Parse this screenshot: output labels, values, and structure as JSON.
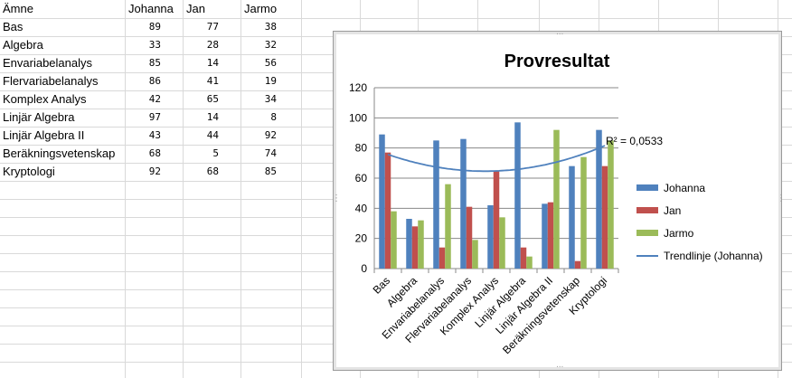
{
  "sheet": {
    "header": [
      "Ämne",
      "Johanna",
      "Jan",
      "Jarmo"
    ],
    "rows": [
      {
        "subject": "Bas",
        "johanna": "89",
        "jan": "77",
        "jarmo": "38"
      },
      {
        "subject": "Algebra",
        "johanna": "33",
        "jan": "28",
        "jarmo": "32"
      },
      {
        "subject": "Envariabelanalys",
        "johanna": "85",
        "jan": "14",
        "jarmo": "56"
      },
      {
        "subject": "Flervariabelanalys",
        "johanna": "86",
        "jan": "41",
        "jarmo": "19"
      },
      {
        "subject": "Komplex Analys",
        "johanna": "42",
        "jan": "65",
        "jarmo": "34"
      },
      {
        "subject": "Linjär Algebra",
        "johanna": "97",
        "jan": "14",
        "jarmo": "8"
      },
      {
        "subject": "Linjär Algebra II",
        "johanna": "43",
        "jan": "44",
        "jarmo": "92"
      },
      {
        "subject": "Beräkningsvetenskap",
        "johanna": "68",
        "jan": "5",
        "jarmo": "74"
      },
      {
        "subject": "Kryptologi",
        "johanna": "92",
        "jan": "68",
        "jarmo": "85"
      }
    ]
  },
  "chart_data": {
    "type": "bar",
    "title": "Provresultat",
    "xlabel": "",
    "ylabel": "",
    "categories": [
      "Bas",
      "Algebra",
      "Envariabelanalys",
      "Flervariabelanalys",
      "Komplex Analys",
      "Linjär Algebra",
      "Linjär Algebra II",
      "Beräkningsvetenskap",
      "Kryptologi"
    ],
    "series": [
      {
        "name": "Johanna",
        "values": [
          89,
          33,
          85,
          86,
          42,
          97,
          43,
          68,
          92
        ],
        "color": "#4f81bd"
      },
      {
        "name": "Jan",
        "values": [
          77,
          28,
          14,
          41,
          65,
          14,
          44,
          5,
          68
        ],
        "color": "#c0504d"
      },
      {
        "name": "Jarmo",
        "values": [
          38,
          32,
          56,
          19,
          34,
          8,
          92,
          74,
          85
        ],
        "color": "#9bbb59"
      }
    ],
    "trendline": {
      "name": "Trendlinje (Johanna)",
      "type": "polynomial",
      "series": "Johanna",
      "color": "#4f81bd",
      "r2_label": "R² = 0,0533"
    },
    "ylim": [
      0,
      120
    ],
    "yticks": [
      0,
      20,
      40,
      60,
      80,
      100,
      120
    ],
    "grid": true,
    "legend": "right"
  }
}
